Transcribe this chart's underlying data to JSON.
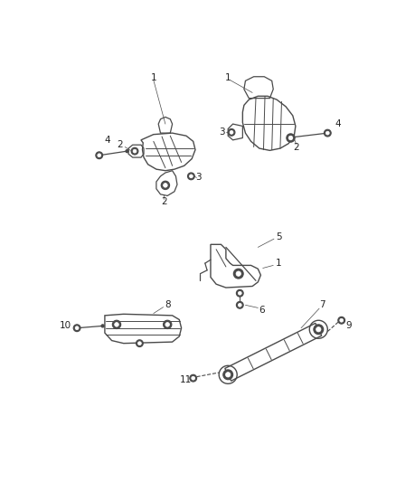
{
  "bg_color": "#ffffff",
  "line_color": "#4a4a4a",
  "text_color": "#222222",
  "label_fontsize": 7.5,
  "fig_width": 4.38,
  "fig_height": 5.33,
  "dpi": 100
}
